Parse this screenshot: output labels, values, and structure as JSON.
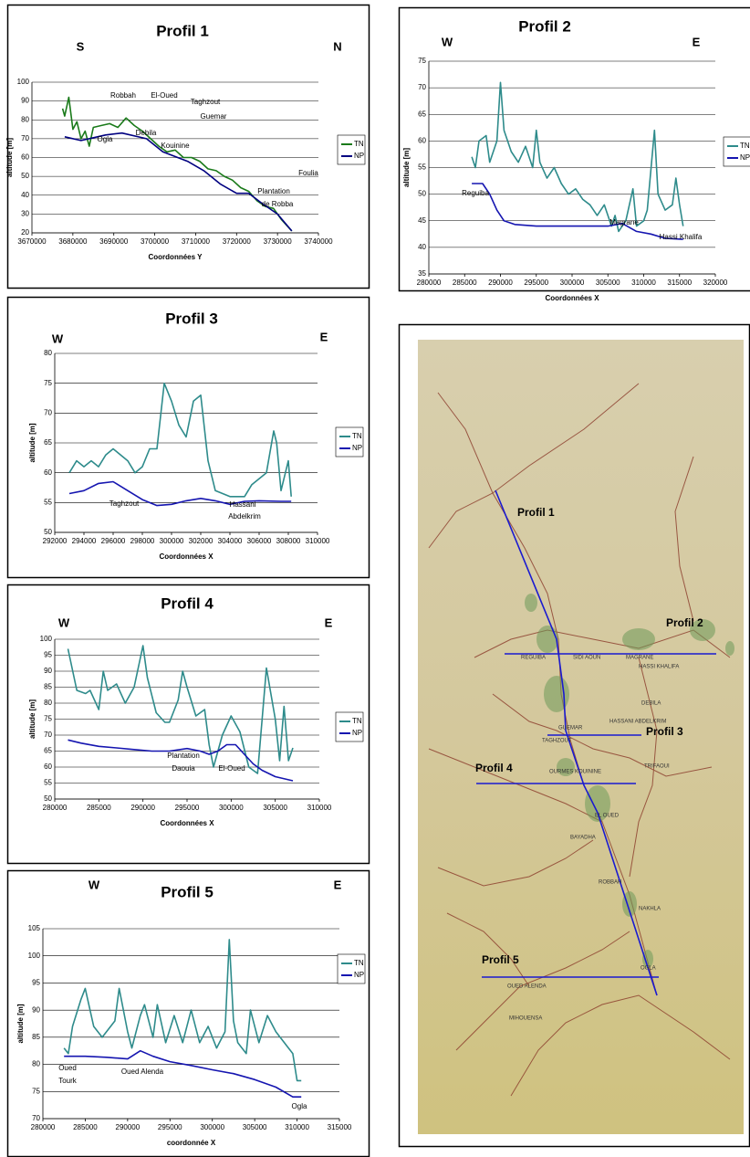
{
  "chart_data": [
    {
      "type": "line",
      "title": "Profil 1",
      "corner_labels": [
        "S",
        "N"
      ],
      "x_label": "Coordonnées Y",
      "y_label": "altitude [m]",
      "xlim": [
        3670000,
        3740000
      ],
      "xticks": [
        3670000,
        3680000,
        3690000,
        3700000,
        3710000,
        3720000,
        3730000,
        3740000
      ],
      "ylim": [
        20,
        100
      ],
      "yticks": [
        20,
        30,
        40,
        50,
        60,
        70,
        80,
        90,
        100
      ],
      "grid": true,
      "annotations": [
        "Robbah",
        "El-Oued",
        "Taghzout",
        "Guemar",
        "Ogla",
        "Debila",
        "Kouinine",
        "Foulia",
        "Plantation",
        "de Robba"
      ],
      "series": [
        {
          "name": "TN",
          "color": "#1a7a1a",
          "x": [
            3677500,
            3678000,
            3679000,
            3680000,
            3681000,
            3682000,
            3683000,
            3684000,
            3685000,
            3687000,
            3689000,
            3691000,
            3693000,
            3695000,
            3697000,
            3699000,
            3701000,
            3703000,
            3705000,
            3707000,
            3709000,
            3711000,
            3713000,
            3715000,
            3717000,
            3719000,
            3721000,
            3723000,
            3725000,
            3727000,
            3729000,
            3731000,
            3733500
          ],
          "values": [
            86,
            82,
            92,
            75,
            79,
            70,
            74,
            66,
            76,
            77,
            78,
            76,
            81,
            77,
            74,
            70,
            66,
            63,
            64,
            60,
            60,
            58,
            54,
            53,
            50,
            48,
            44,
            42,
            37,
            34,
            33,
            27,
            21
          ]
        },
        {
          "name": "NP",
          "color": "#000080",
          "x": [
            3678000,
            3682000,
            3688000,
            3692000,
            3698000,
            3702000,
            3708000,
            3712000,
            3716000,
            3720000,
            3723000,
            3726000,
            3730000,
            3733500
          ],
          "values": [
            71,
            69,
            72,
            73,
            70,
            63,
            58,
            53,
            46,
            41,
            41,
            36,
            30,
            21
          ]
        }
      ]
    },
    {
      "type": "line",
      "title": "Profil 2",
      "corner_labels": [
        "W",
        "E"
      ],
      "x_label": "Coordonnées X",
      "y_label": "altitude [m]",
      "xlim": [
        280000,
        320000
      ],
      "xticks": [
        280000,
        285000,
        290000,
        295000,
        300000,
        305000,
        310000,
        315000,
        320000
      ],
      "ylim": [
        35,
        75
      ],
      "yticks": [
        35,
        40,
        45,
        50,
        55,
        60,
        65,
        70,
        75
      ],
      "grid": true,
      "annotations": [
        "Reguiba",
        "Magrane",
        "Hassi Khalifa"
      ],
      "series": [
        {
          "name": "TN",
          "color": "#2e8b8b",
          "x": [
            286000,
            286500,
            287000,
            288000,
            288500,
            289500,
            290000,
            290500,
            291500,
            292500,
            293500,
            294500,
            295000,
            295500,
            296500,
            297500,
            298500,
            299500,
            300500,
            301500,
            302500,
            303500,
            304500,
            305500,
            306000,
            306500,
            307500,
            308500,
            309000,
            310000,
            310500,
            311500,
            312000,
            313000,
            314000,
            314500,
            315000,
            315500
          ],
          "values": [
            57,
            55,
            60,
            61,
            56,
            60,
            71,
            62,
            58,
            56,
            59,
            55,
            62,
            56,
            53,
            55,
            52,
            50,
            51,
            49,
            48,
            46,
            48,
            44,
            46,
            43,
            45,
            51,
            44,
            45,
            47,
            62,
            50,
            47,
            48,
            53,
            48,
            44
          ]
        },
        {
          "name": "NP",
          "color": "#1515b0",
          "x": [
            286000,
            287500,
            288500,
            289500,
            290500,
            292000,
            295000,
            300000,
            305000,
            307000,
            309000,
            311000,
            313000,
            315500
          ],
          "values": [
            52,
            52,
            50,
            47,
            45,
            44.3,
            44,
            44,
            44,
            44.5,
            43,
            42.5,
            41.7,
            41.5
          ]
        }
      ]
    },
    {
      "type": "line",
      "title": "Profil 3",
      "corner_labels": [
        "W",
        "E"
      ],
      "x_label": "Coordonnées X",
      "y_label": "altitude [m]",
      "xlim": [
        292000,
        310000
      ],
      "xticks": [
        292000,
        294000,
        296000,
        298000,
        300000,
        302000,
        304000,
        306000,
        308000,
        310000
      ],
      "ylim": [
        50,
        80
      ],
      "yticks": [
        50,
        55,
        60,
        65,
        70,
        75,
        80
      ],
      "grid": true,
      "annotations": [
        "Taghzout",
        "Hassani",
        "Abdelkrim"
      ],
      "series": [
        {
          "name": "TN",
          "color": "#2e8b8b",
          "x": [
            293000,
            293500,
            294000,
            294500,
            295000,
            295500,
            296000,
            297000,
            297500,
            298000,
            298500,
            299000,
            299500,
            300000,
            300500,
            301000,
            301500,
            302000,
            302500,
            303000,
            304000,
            305000,
            305500,
            306000,
            306500,
            307000,
            307200,
            307500,
            308000,
            308200
          ],
          "values": [
            60,
            62,
            61,
            62,
            61,
            63,
            64,
            62,
            60,
            61,
            64,
            64,
            75,
            72,
            68,
            66,
            72,
            73,
            62,
            57,
            56,
            56,
            58,
            59,
            60,
            67,
            65,
            57,
            62,
            56
          ]
        },
        {
          "name": "NP",
          "color": "#1515b0",
          "x": [
            293000,
            294000,
            295000,
            296000,
            297000,
            298000,
            299000,
            300000,
            301000,
            302000,
            303000,
            304000,
            305000,
            306000,
            307500,
            308200
          ],
          "values": [
            56.5,
            57,
            58.2,
            58.5,
            57,
            55.5,
            54.5,
            54.7,
            55.3,
            55.7,
            55.3,
            54.7,
            55.2,
            55.3,
            55.2,
            55.2
          ]
        }
      ]
    },
    {
      "type": "line",
      "title": "Profil 4",
      "corner_labels": [
        "W",
        "E"
      ],
      "x_label": "Coordonnées X",
      "y_label": "altitude [m]",
      "xlim": [
        280000,
        310000
      ],
      "xticks": [
        280000,
        285000,
        290000,
        295000,
        300000,
        305000,
        310000
      ],
      "ylim": [
        50,
        100
      ],
      "yticks": [
        50,
        55,
        60,
        65,
        70,
        75,
        80,
        85,
        90,
        95,
        100
      ],
      "grid": true,
      "annotations": [
        "Plantation",
        "Daouia",
        "El-Oued"
      ],
      "series": [
        {
          "name": "TN",
          "color": "#2e8b8b",
          "x": [
            281500,
            282500,
            283500,
            284000,
            285000,
            285500,
            286000,
            287000,
            288000,
            289000,
            290000,
            290500,
            291500,
            292500,
            293000,
            294000,
            294500,
            295000,
            296000,
            297000,
            297500,
            298000,
            299000,
            300000,
            301000,
            302000,
            303000,
            304000,
            305000,
            305500,
            306000,
            306500,
            307000
          ],
          "values": [
            97,
            84,
            83,
            84,
            78,
            90,
            84,
            86,
            80,
            85,
            98,
            88,
            77,
            74,
            74,
            81,
            90,
            85,
            76,
            78,
            67,
            60,
            70,
            76,
            71,
            60,
            58,
            91,
            75,
            62,
            79,
            62,
            66
          ]
        },
        {
          "name": "NP",
          "color": "#1515b0",
          "x": [
            281500,
            283000,
            285000,
            287000,
            289000,
            291000,
            293000,
            295000,
            296500,
            297500,
            298500,
            299500,
            300500,
            301500,
            302500,
            303500,
            305000,
            307000
          ],
          "values": [
            68.5,
            67.5,
            66.5,
            66,
            65.5,
            65,
            65,
            65.8,
            65,
            64,
            65,
            67,
            67,
            64,
            61,
            59,
            57,
            55.7
          ]
        }
      ]
    },
    {
      "type": "line",
      "title": "Profil 5",
      "corner_labels": [
        "W",
        "E"
      ],
      "x_label": "coordonnée X",
      "y_label": "altitude [m]",
      "xlim": [
        280000,
        315000
      ],
      "xticks": [
        280000,
        285000,
        290000,
        295000,
        300000,
        305000,
        310000,
        315000
      ],
      "ylim": [
        70,
        105
      ],
      "yticks": [
        70,
        75,
        80,
        85,
        90,
        95,
        100,
        105
      ],
      "grid": true,
      "annotations": [
        "Oued",
        "Tourk",
        "Oued Alenda",
        "Ogla"
      ],
      "series": [
        {
          "name": "TN",
          "color": "#2e8b8b",
          "x": [
            282500,
            283000,
            283500,
            284500,
            285000,
            286000,
            287000,
            288500,
            289000,
            290000,
            290500,
            291500,
            292000,
            293000,
            293500,
            294500,
            295500,
            296500,
            297500,
            298500,
            299500,
            300500,
            301500,
            302000,
            302500,
            303000,
            304000,
            304500,
            305500,
            306500,
            307500,
            308500,
            309500,
            310000,
            310500
          ],
          "values": [
            83,
            82,
            87,
            92,
            94,
            87,
            85,
            88,
            94,
            86,
            83,
            89,
            91,
            85,
            91,
            84,
            89,
            84,
            90,
            84,
            87,
            83,
            86,
            103,
            88,
            84,
            82,
            90,
            84,
            89,
            86,
            84,
            82,
            77,
            77
          ]
        },
        {
          "name": "NP",
          "color": "#1515b0",
          "x": [
            282500,
            285000,
            287500,
            290000,
            291500,
            293000,
            295000,
            297500,
            300000,
            302500,
            305000,
            307500,
            309500,
            310500
          ],
          "values": [
            81.5,
            81.5,
            81.3,
            81,
            82.5,
            81.5,
            80.5,
            79.8,
            79,
            78.3,
            77.2,
            75.8,
            74,
            74
          ]
        }
      ]
    }
  ],
  "map": {
    "profile_labels": [
      "Profil 1",
      "Profil 2",
      "Profil 3",
      "Profil 4",
      "Profil 5"
    ],
    "places": [
      "REGUIBA",
      "SIDI AOUN",
      "MAGRANE",
      "HASSI KHALIFA",
      "DEBILA",
      "HASSANI ABDELKRIM",
      "GUEMAR",
      "TAGHZOUT",
      "OURMES",
      "KOUININE",
      "TRIFAOUI",
      "EL OUED",
      "BAYADHA",
      "ROBBAH",
      "NAKHLA",
      "OGLA",
      "OUED ALENDA",
      "MIHOUENSA"
    ]
  }
}
